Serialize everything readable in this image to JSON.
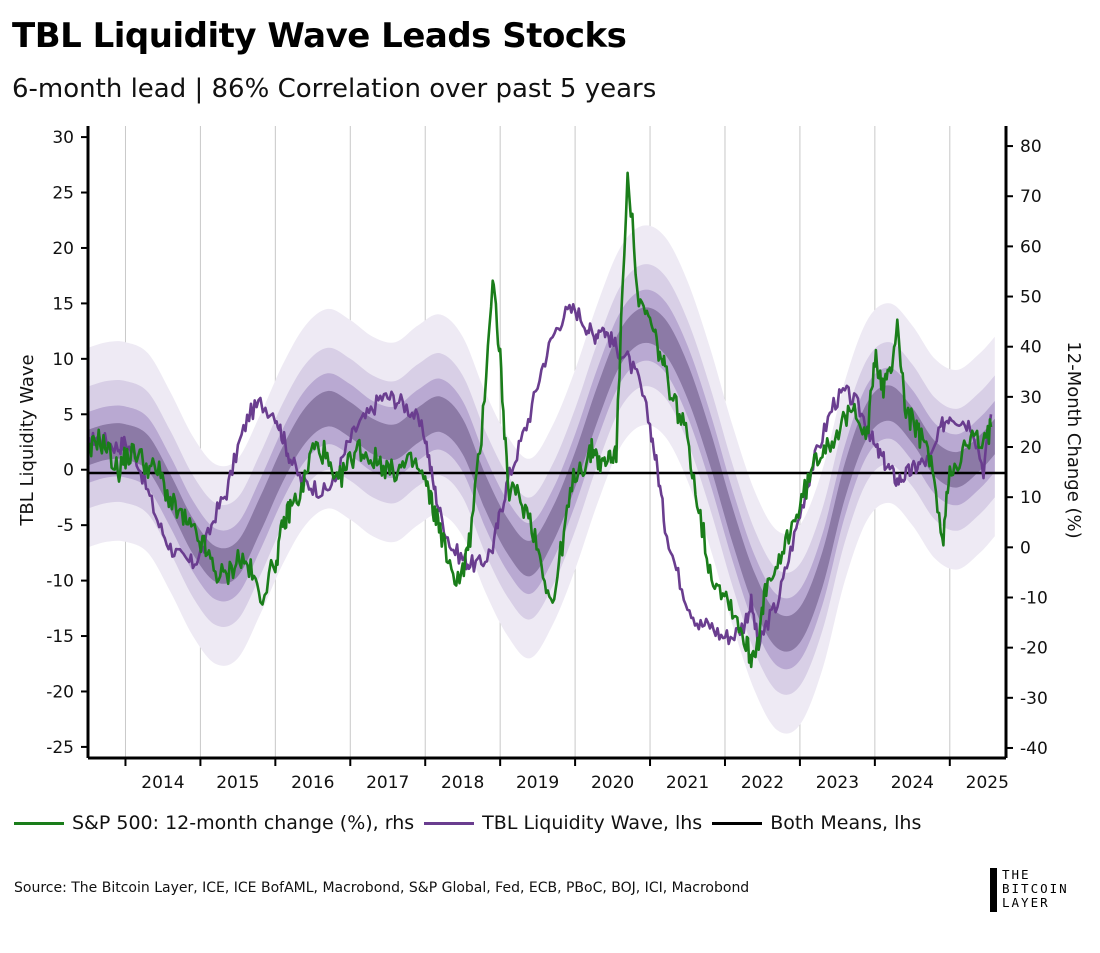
{
  "header": {
    "title": "TBL Liquidity Wave Leads Stocks",
    "subtitle": "6-month lead | 86% Correlation over past 5 years"
  },
  "colors": {
    "sp500": "#1a7d1a",
    "wave": "#6a3d8f",
    "mean": "#000000",
    "band_outer": "#eeeaf4",
    "band_mid": "#d8cfe6",
    "band_inner": "#b9a9d2",
    "band_core": "#8c7aa6"
  },
  "legend": [
    {
      "label": "S&P 500: 12-month change (%), rhs",
      "color_key": "sp500"
    },
    {
      "label": "TBL Liquidity Wave, lhs",
      "color_key": "wave"
    },
    {
      "label": "Both Means, lhs",
      "color_key": "mean"
    }
  ],
  "footer": {
    "source": "Source: The Bitcoin Layer, ICE, ICE BofAML, Macrobond, S&P Global, Fed, ECB, PBoC, BOJ, ICI, Macrobond",
    "logo_lines": [
      "THE",
      "BITCOIN",
      "LAYER"
    ]
  },
  "chart_data": {
    "type": "line",
    "title": "TBL Liquidity Wave Leads Stocks",
    "ylabel": "TBL Liquidity Wave",
    "y2label": "12-Month Change (%)",
    "ylim": [
      -26,
      31
    ],
    "y2lim": [
      -42,
      84
    ],
    "yticks": [
      30,
      25,
      20,
      15,
      10,
      5,
      0,
      -5,
      -10,
      -15,
      -20,
      -25
    ],
    "y2ticks": [
      80,
      70,
      60,
      50,
      40,
      30,
      20,
      10,
      0,
      -10,
      -20,
      -30,
      -40
    ],
    "xlim": [
      2013.5,
      2025.75
    ],
    "xticks": [
      "2014",
      "2015",
      "2016",
      "2017",
      "2018",
      "2019",
      "2020",
      "2021",
      "2022",
      "2023",
      "2024",
      "2025"
    ],
    "mean_lhs": -0.3,
    "series": [
      {
        "name": "S&P 500: 12-month change (%), rhs",
        "axis": "rhs",
        "x": [
          2013.5,
          2013.6,
          2013.75,
          2013.9,
          2014.0,
          2014.15,
          2014.3,
          2014.45,
          2014.6,
          2014.75,
          2014.9,
          2015.05,
          2015.2,
          2015.35,
          2015.5,
          2015.65,
          2015.8,
          2016.0,
          2016.1,
          2016.2,
          2016.35,
          2016.5,
          2016.65,
          2016.8,
          2016.95,
          2017.1,
          2017.25,
          2017.4,
          2017.55,
          2017.7,
          2017.85,
          2018.0,
          2018.1,
          2018.2,
          2018.35,
          2018.5,
          2018.6,
          2018.75,
          2018.9,
          2019.0,
          2019.1,
          2019.25,
          2019.4,
          2019.55,
          2019.7,
          2019.85,
          2020.0,
          2020.15,
          2020.25,
          2020.35,
          2020.45,
          2020.55,
          2020.7,
          2020.85,
          2021.0,
          2021.1,
          2021.2,
          2021.35,
          2021.5,
          2021.65,
          2021.8,
          2021.95,
          2022.1,
          2022.25,
          2022.35,
          2022.45,
          2022.55,
          2022.7,
          2022.85,
          2023.0,
          2023.15,
          2023.3,
          2023.45,
          2023.6,
          2023.75,
          2023.9,
          2024.0,
          2024.1,
          2024.2,
          2024.3,
          2024.4,
          2024.5,
          2024.6,
          2024.75,
          2024.9,
          2025.0,
          2025.15,
          2025.3,
          2025.45,
          2025.55
        ],
        "y": [
          17,
          22,
          20,
          15,
          18,
          19,
          16,
          15,
          9,
          6,
          3,
          0,
          -5,
          -6,
          -2,
          -4,
          -10,
          -3,
          4,
          8,
          11,
          20,
          19,
          12,
          16,
          20,
          18,
          17,
          15,
          16,
          17,
          13,
          8,
          4,
          -6,
          -5,
          2,
          22,
          54,
          38,
          12,
          10,
          6,
          -3,
          -12,
          3,
          15,
          17,
          20,
          16,
          18,
          19,
          76,
          48,
          45,
          40,
          35,
          28,
          22,
          8,
          -5,
          -8,
          -12,
          -18,
          -22,
          -18,
          -8,
          -5,
          3,
          8,
          15,
          20,
          22,
          25,
          28,
          22,
          38,
          32,
          34,
          45,
          28,
          25,
          22,
          18,
          0,
          16,
          18,
          22,
          20,
          24
        ]
      },
      {
        "name": "TBL Liquidity Wave, lhs",
        "axis": "lhs",
        "x": [
          2013.5,
          2013.6,
          2013.75,
          2013.9,
          2014.0,
          2014.15,
          2014.3,
          2014.45,
          2014.6,
          2014.75,
          2014.9,
          2015.05,
          2015.2,
          2015.35,
          2015.5,
          2015.65,
          2015.8,
          2016.0,
          2016.1,
          2016.2,
          2016.35,
          2016.5,
          2016.65,
          2016.8,
          2016.95,
          2017.1,
          2017.25,
          2017.4,
          2017.55,
          2017.7,
          2017.85,
          2018.0,
          2018.1,
          2018.2,
          2018.35,
          2018.5,
          2018.6,
          2018.75,
          2018.9,
          2019.0,
          2019.1,
          2019.25,
          2019.4,
          2019.55,
          2019.7,
          2019.85,
          2020.0,
          2020.15,
          2020.25,
          2020.35,
          2020.45,
          2020.55,
          2020.7,
          2020.85,
          2021.0,
          2021.1,
          2021.2,
          2021.35,
          2021.5,
          2021.65,
          2021.8,
          2021.95,
          2022.1,
          2022.25,
          2022.35,
          2022.45,
          2022.55,
          2022.7,
          2022.85,
          2023.0,
          2023.15,
          2023.3,
          2023.45,
          2023.6,
          2023.75,
          2023.9,
          2024.0,
          2024.1,
          2024.2,
          2024.3,
          2024.4,
          2024.5,
          2024.6,
          2024.75,
          2024.9,
          2025.0,
          2025.15,
          2025.3,
          2025.45,
          2025.55
        ],
        "y": [
          2,
          3,
          2.5,
          2,
          2.5,
          1,
          -2,
          -5,
          -7,
          -8,
          -8.5,
          -7,
          -4,
          -2,
          2,
          5,
          6,
          5,
          3,
          1,
          -1,
          -1.5,
          -2,
          -1,
          2,
          4,
          5,
          6.5,
          6.5,
          6,
          5,
          3,
          -1,
          -4,
          -7,
          -8,
          -8.5,
          -8.5,
          -7,
          -4,
          -1,
          2,
          5,
          9,
          12,
          14,
          14.5,
          13,
          12,
          13,
          12,
          11,
          10,
          8,
          4,
          0,
          -5,
          -9,
          -12,
          -14,
          -14,
          -15,
          -15,
          -14,
          -12,
          -16,
          -14,
          -12,
          -8,
          -4,
          0,
          3,
          6,
          7,
          6,
          4,
          2,
          1,
          0,
          -1,
          -0.5,
          0,
          0.5,
          1,
          4,
          5,
          4.5,
          4,
          0,
          5
        ]
      }
    ],
    "band_center": {
      "x": [
        2013.5,
        2013.75,
        2014.0,
        2014.3,
        2014.6,
        2014.9,
        2015.2,
        2015.5,
        2015.8,
        2016.1,
        2016.4,
        2016.7,
        2017.0,
        2017.3,
        2017.6,
        2017.9,
        2018.2,
        2018.5,
        2018.8,
        2019.1,
        2019.4,
        2019.7,
        2020.0,
        2020.3,
        2020.6,
        2020.9,
        2021.2,
        2021.5,
        2021.8,
        2022.1,
        2022.4,
        2022.7,
        2023.0,
        2023.3,
        2023.6,
        2023.9,
        2024.2,
        2024.5,
        2024.8,
        2025.1,
        2025.4,
        2025.6
      ],
      "y": [
        2,
        2.5,
        2.5,
        1.5,
        -2,
        -6,
        -8.5,
        -8,
        -4,
        0.5,
        4,
        5.5,
        4.5,
        3,
        2.5,
        4,
        5,
        3,
        -2,
        -6,
        -8,
        -5,
        0,
        6,
        11,
        13,
        12,
        8,
        2,
        -5,
        -11,
        -14.5,
        -14,
        -9,
        -1,
        4.5,
        6,
        4,
        1,
        0,
        1.5,
        3
      ],
      "widths": [
        9,
        5.5,
        3.2,
        1.6
      ]
    }
  }
}
